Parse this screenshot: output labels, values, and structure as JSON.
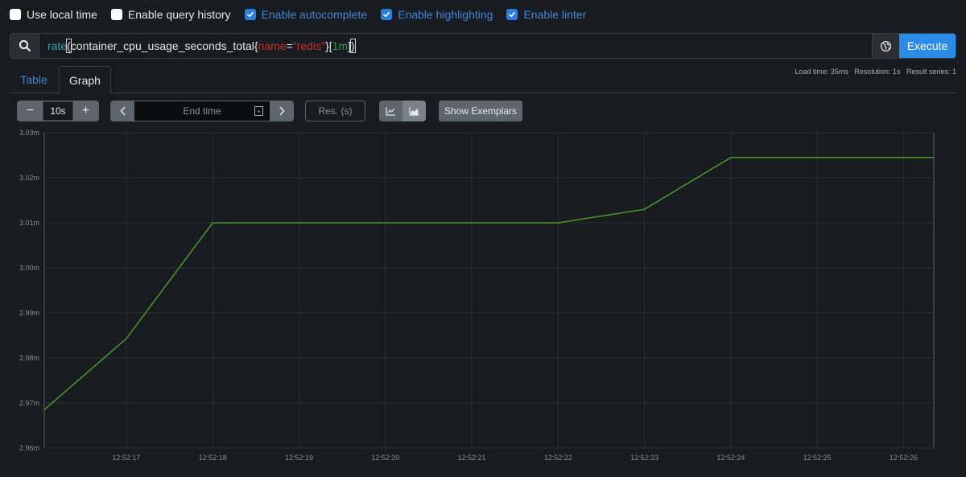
{
  "options": [
    {
      "label": "Use local time",
      "checked": false
    },
    {
      "label": "Enable query history",
      "checked": false
    },
    {
      "label": "Enable autocomplete",
      "checked": true
    },
    {
      "label": "Enable highlighting",
      "checked": true
    },
    {
      "label": "Enable linter",
      "checked": true
    }
  ],
  "query": {
    "fn": "rate",
    "open_paren": "(",
    "metric": "container_cpu_usage_seconds_total",
    "open_brace": "{",
    "label_name": "name",
    "operator": "=",
    "label_value": "\"redis\"",
    "close_brace": "}",
    "open_bracket": "[",
    "range": "1m",
    "close_bracket": "]",
    "close_paren": ")",
    "execute_label": "Execute",
    "search_icon": "search-icon",
    "globe_icon": "globe-icon"
  },
  "tabs": {
    "table": "Table",
    "graph": "Graph",
    "active": "Graph"
  },
  "stats": {
    "load_time": "Load time: 35ms",
    "resolution": "Resolution: 1s",
    "result_series": "Result series: 1"
  },
  "controls": {
    "minus": "−",
    "range_value": "10s",
    "plus": "+",
    "prev": "‹",
    "end_time_placeholder": "End time",
    "next": "›",
    "res_placeholder": "Res. (s)",
    "line_icon": "line-chart-icon",
    "stacked_icon": "stacked-chart-icon",
    "exemplars_label": "Show Exemplars"
  },
  "colors": {
    "series": "#4c9a2a",
    "accent": "#2b8be6"
  },
  "chart_data": {
    "type": "line",
    "y_tick_labels": [
      "3.03m",
      "3.02m",
      "3.01m",
      "3.00m",
      "2.99m",
      "2.98m",
      "2.97m",
      "2.96m"
    ],
    "y_tick_values": [
      3.03,
      3.02,
      3.01,
      3.0,
      2.99,
      2.98,
      2.97,
      2.96
    ],
    "ylim": [
      2.96,
      3.03
    ],
    "x_tick_labels": [
      "12:52:17",
      "12:52:18",
      "12:52:19",
      "12:52:20",
      "12:52:21",
      "12:52:22",
      "12:52:23",
      "12:52:24",
      "12:52:25",
      "12:52:26"
    ],
    "x_tick_values": [
      17,
      18,
      19,
      20,
      21,
      22,
      23,
      24,
      25,
      26
    ],
    "xlim": [
      16.05,
      26.35
    ],
    "series": [
      {
        "x": [
          16.05,
          17.0,
          18.0,
          19.0,
          20.0,
          21.0,
          22.0,
          23.0,
          24.0,
          25.0,
          26.0,
          26.35
        ],
        "y": [
          2.9685,
          2.9843,
          3.01,
          3.01,
          3.01,
          3.01,
          3.01,
          3.013,
          3.0245,
          3.0245,
          3.0245,
          3.0245
        ]
      }
    ],
    "grid": true
  }
}
